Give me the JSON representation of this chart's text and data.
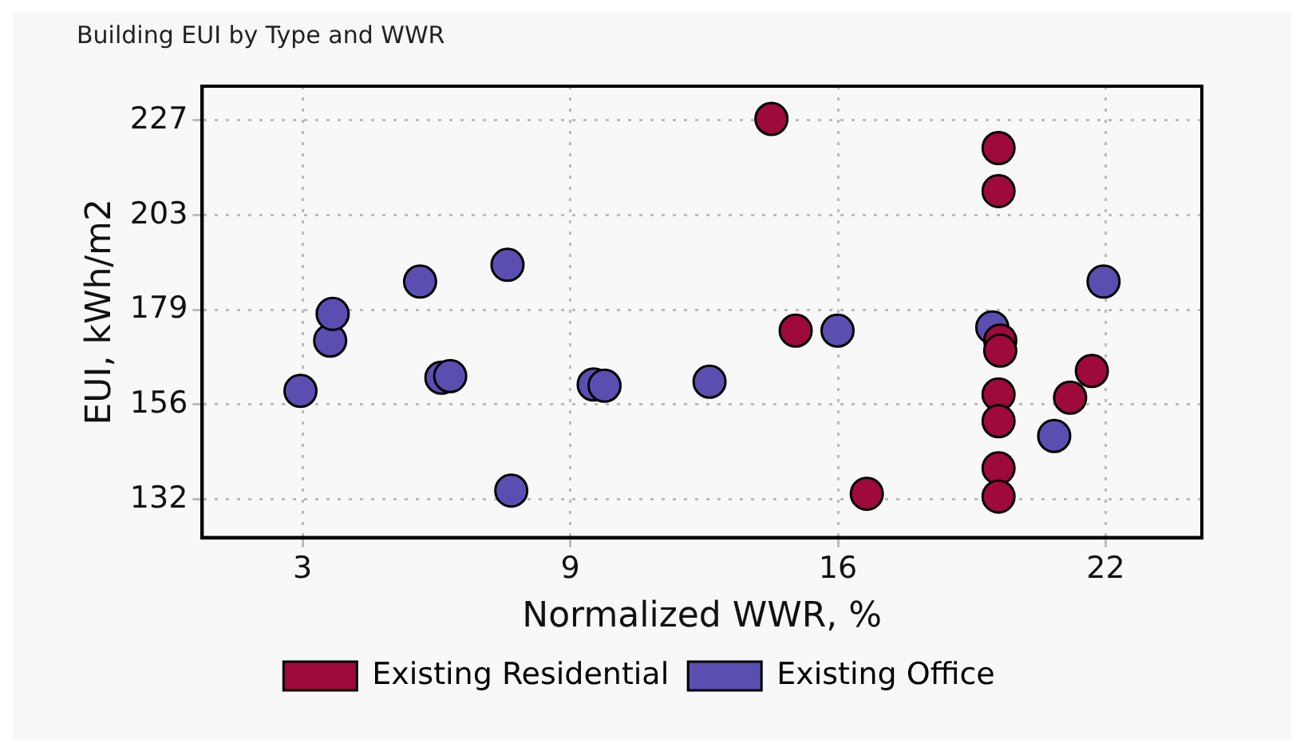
{
  "chart_data": {
    "type": "scatter",
    "title": "Building EUI by Type and WWR",
    "xlabel": "Normalized WWR, %",
    "ylabel": "EUI, kWh/m2",
    "series": [
      {
        "name": "Existing Residential",
        "color": "#9e0a3c",
        "x": [
          14.21,
          14.79,
          16.49,
          19.64,
          19.64,
          19.68,
          19.68,
          19.64,
          19.64,
          19.64,
          19.64,
          21.35,
          21.87
        ],
        "values": [
          227.4,
          174.3,
          133.4,
          220.1,
          209.3,
          171.8,
          169.3,
          158.3,
          151.6,
          139.8,
          132.7,
          157.5,
          164.2
        ]
      },
      {
        "name": "Existing Office",
        "color": "#5a4fb0",
        "x": [
          2.95,
          3.66,
          3.72,
          5.81,
          6.32,
          6.53,
          7.9,
          7.99,
          9.96,
          10.22,
          12.73,
          15.79,
          19.49,
          22.15,
          20.97
        ],
        "values": [
          159.2,
          171.8,
          178.5,
          186.6,
          162.5,
          162.9,
          190.8,
          134.2,
          160.8,
          160.5,
          161.5,
          174.3,
          175.1,
          186.6,
          147.9
        ]
      }
    ],
    "xlim": [
      0.6,
      24.5
    ],
    "xticks": [
      3,
      {
        "value": 9.4,
        "label": "9"
      },
      {
        "value": 15.8,
        "label": "16"
      },
      {
        "value": 22.2,
        "label": "22"
      }
    ],
    "ylim": [
      122.4,
      235.6
    ],
    "yticks": [
      132,
      {
        "value": 155.75,
        "label": "156"
      },
      {
        "value": 179.5,
        "label": "179"
      },
      {
        "value": 203.25,
        "label": "203"
      },
      227
    ],
    "grid": true,
    "legend": "bottom",
    "marker": "circle"
  }
}
